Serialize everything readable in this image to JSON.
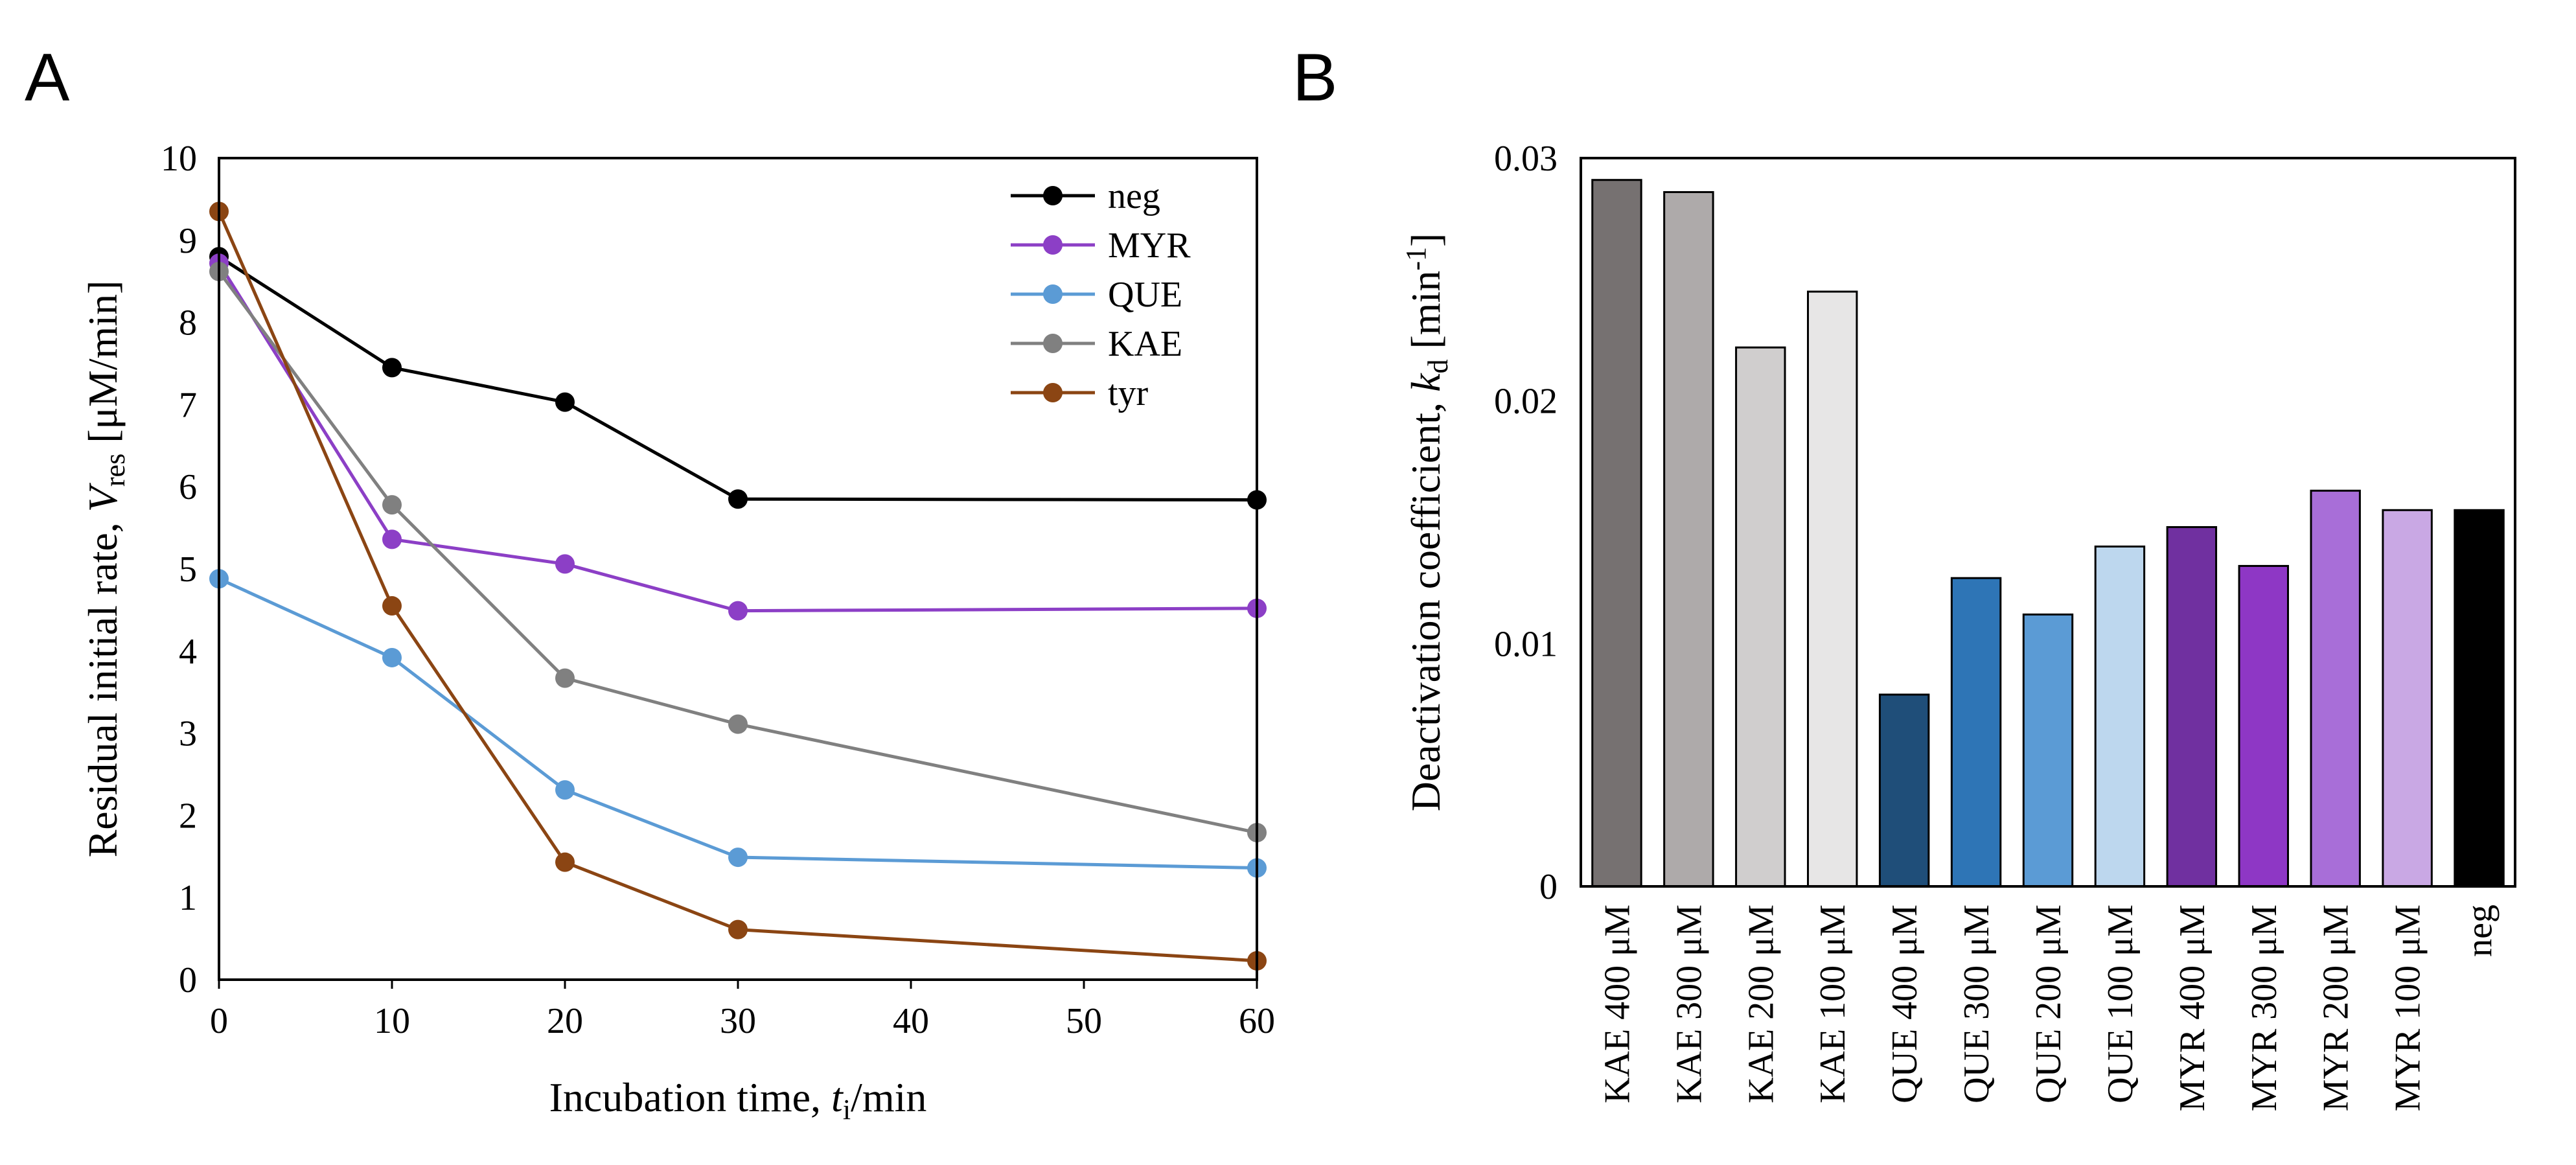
{
  "chart_data": [
    {
      "panel": "A",
      "type": "line",
      "title": "",
      "xlabel": "Incubation time, ",
      "xlabel_var": "t",
      "xlabel_sub": "i",
      "xlabel_unit": "/min",
      "ylabel": "Residual initial rate, ",
      "ylabel_var": "V",
      "ylabel_sub": "res",
      "ylabel_unit": " [μM/min]",
      "xlim": [
        0,
        60
      ],
      "ylim": [
        0,
        10
      ],
      "xticks": [
        "0",
        "10",
        "20",
        "30",
        "40",
        "50",
        "60"
      ],
      "xtick_values": [
        0,
        10,
        20,
        30,
        40,
        50,
        60
      ],
      "yticks": [
        "0",
        "1",
        "2",
        "3",
        "4",
        "5",
        "6",
        "7",
        "8",
        "9",
        "10"
      ],
      "yticks_values": [
        0,
        1,
        2,
        3,
        4,
        5,
        6,
        7,
        8,
        9,
        10
      ],
      "legend_position": "top-right",
      "x": [
        0,
        10,
        20,
        30,
        60
      ],
      "series": [
        {
          "name": "neg",
          "color": "#000000",
          "values": [
            8.8,
            7.45,
            7.03,
            5.85,
            5.84
          ]
        },
        {
          "name": "MYR",
          "color": "#8C3FC6",
          "values": [
            8.72,
            5.36,
            5.06,
            4.49,
            4.52
          ]
        },
        {
          "name": "QUE",
          "color": "#5B9BD5",
          "values": [
            4.88,
            3.92,
            2.31,
            1.49,
            1.36
          ]
        },
        {
          "name": "KAE",
          "color": "#808080",
          "values": [
            8.62,
            5.78,
            3.67,
            3.11,
            1.79
          ]
        },
        {
          "name": "tyr",
          "color": "#8B4513",
          "values": [
            9.35,
            4.55,
            1.43,
            0.61,
            0.23
          ]
        }
      ]
    },
    {
      "panel": "B",
      "type": "bar",
      "title": "",
      "xlabel": "",
      "ylabel": "Deactivation coefficient, ",
      "ylabel_var": "k",
      "ylabel_sub": "d",
      "ylabel_unit_pre": " [min",
      "ylabel_sup": "-1",
      "ylabel_unit_post": "]",
      "ylim": [
        0,
        0.03
      ],
      "yticks": [
        "0",
        "0.01",
        "0.02",
        "0.03"
      ],
      "yticks_values": [
        0,
        0.01,
        0.02,
        0.03
      ],
      "categories": [
        "KAE 400 μM",
        "KAE 300 μM",
        "KAE 200 μM",
        "KAE 100 μM",
        "QUE 400 μM",
        "QUE 300 μM",
        "QUE 200 μM",
        "QUE 100 μM",
        "MYR 400 μM",
        "MYR 300 μM",
        "MYR 200 μM",
        "MYR 100 μM",
        "neg"
      ],
      "values": [
        0.0291,
        0.0286,
        0.0222,
        0.0245,
        0.0079,
        0.0127,
        0.0112,
        0.014,
        0.0148,
        0.0132,
        0.0163,
        0.0155,
        0.0155
      ],
      "colors": [
        "#767171",
        "#AEAAAA",
        "#D0CECE",
        "#E7E6E6",
        "#1F4E79",
        "#2E75B6",
        "#5B9BD5",
        "#BDD7EE",
        "#7030A0",
        "#8E37C5",
        "#A86ED8",
        "#C9A8E4",
        "#000000"
      ]
    }
  ],
  "labels": {
    "panel_a": "A",
    "panel_b": "B"
  }
}
